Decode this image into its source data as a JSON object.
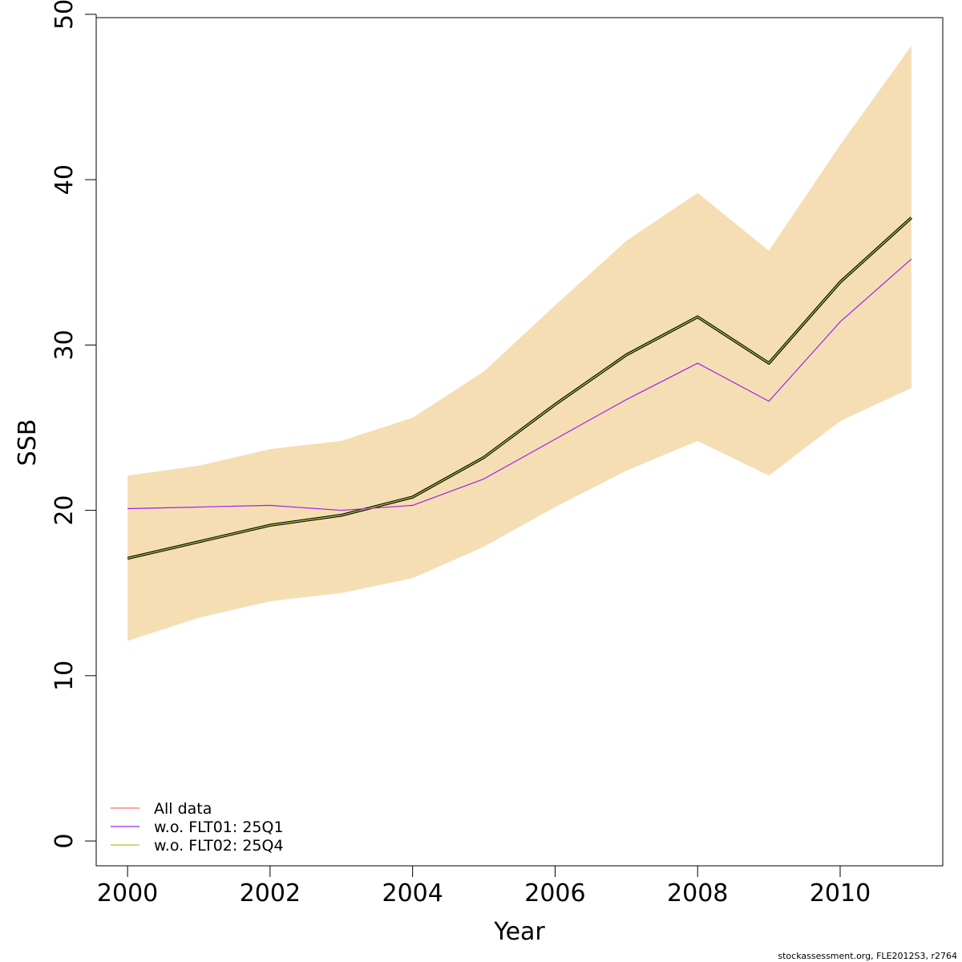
{
  "chart_data": {
    "type": "line",
    "title": "",
    "xlabel": "Year",
    "ylabel": "SSB",
    "xlim": [
      1999.56,
      2011.44
    ],
    "ylim": [
      -1.5,
      49.8
    ],
    "x_ticks": [
      2000,
      2002,
      2004,
      2006,
      2008,
      2010
    ],
    "y_ticks": [
      0,
      10,
      20,
      30,
      40,
      50
    ],
    "grid": false,
    "legend_position": "bottom-left",
    "x": [
      2000,
      2001,
      2002,
      2003,
      2004,
      2005,
      2006,
      2007,
      2008,
      2009,
      2010,
      2011
    ],
    "band": {
      "color": "#f5deb3",
      "lower": [
        12.1,
        13.5,
        14.5,
        15.0,
        15.9,
        17.8,
        20.2,
        22.4,
        24.2,
        22.1,
        25.4,
        27.4
      ],
      "upper": [
        22.1,
        22.7,
        23.7,
        24.2,
        25.6,
        28.4,
        32.4,
        36.3,
        39.2,
        35.7,
        42.1,
        48.1
      ]
    },
    "central_line": {
      "color": "#000000",
      "values": [
        17.1,
        18.1,
        19.1,
        19.7,
        20.8,
        23.2,
        26.4,
        29.4,
        31.7,
        28.9,
        33.8,
        37.7
      ]
    },
    "series": [
      {
        "name": "All data",
        "color": "#ff6b6b",
        "values": [
          17.1,
          18.1,
          19.1,
          19.7,
          20.8,
          23.2,
          26.4,
          29.4,
          31.7,
          28.9,
          33.8,
          37.7
        ]
      },
      {
        "name": "w.o. FLT01: 25Q1",
        "color": "#a020f0",
        "values": [
          20.1,
          20.2,
          20.3,
          20.0,
          20.3,
          21.9,
          24.3,
          26.7,
          28.9,
          26.6,
          31.4,
          35.2
        ]
      },
      {
        "name": "w.o. FLT02: 25Q4",
        "color": "#9acd32",
        "values": [
          17.1,
          18.1,
          19.1,
          19.7,
          20.8,
          23.2,
          26.4,
          29.4,
          31.7,
          28.9,
          33.8,
          37.7
        ]
      }
    ]
  },
  "footer": "stockassessment.org, FLE2012S3, r2764"
}
